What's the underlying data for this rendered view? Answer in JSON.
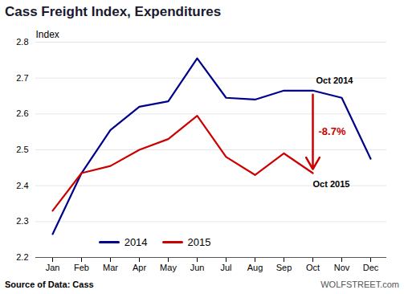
{
  "chart_data": {
    "type": "line",
    "title": "Cass Freight Index, Expenditures",
    "ylabel": "Index",
    "categories": [
      "Jan",
      "Feb",
      "Mar",
      "Apr",
      "May",
      "Jun",
      "Jul",
      "Aug",
      "Sep",
      "Oct",
      "Nov",
      "Dec"
    ],
    "series": [
      {
        "name": "2014",
        "color": "#00008B",
        "values": [
          2.265,
          2.435,
          2.555,
          2.62,
          2.635,
          2.755,
          2.645,
          2.64,
          2.665,
          2.665,
          2.645,
          2.475
        ]
      },
      {
        "name": "2015",
        "color": "#CC0000",
        "values": [
          2.33,
          2.435,
          2.455,
          2.5,
          2.53,
          2.595,
          2.48,
          2.43,
          2.49,
          2.435,
          null,
          null
        ]
      }
    ],
    "ylim": [
      2.2,
      2.8
    ],
    "yticks": [
      2.2,
      2.3,
      2.4,
      2.5,
      2.6,
      2.7,
      2.8
    ],
    "grid": true,
    "legend": "lower left",
    "annotations": [
      {
        "text": "Oct 2014",
        "category": "Oct",
        "series": "2014"
      },
      {
        "text": "Oct 2015",
        "category": "Oct",
        "series": "2015"
      },
      {
        "text": "-8.7%",
        "category": "Oct",
        "from_series": "2014",
        "to_series": "2015",
        "arrow": true,
        "color": "#CC0000"
      }
    ],
    "source": "Source of Data: Cass",
    "watermark": "WOLFSTREET.com"
  }
}
